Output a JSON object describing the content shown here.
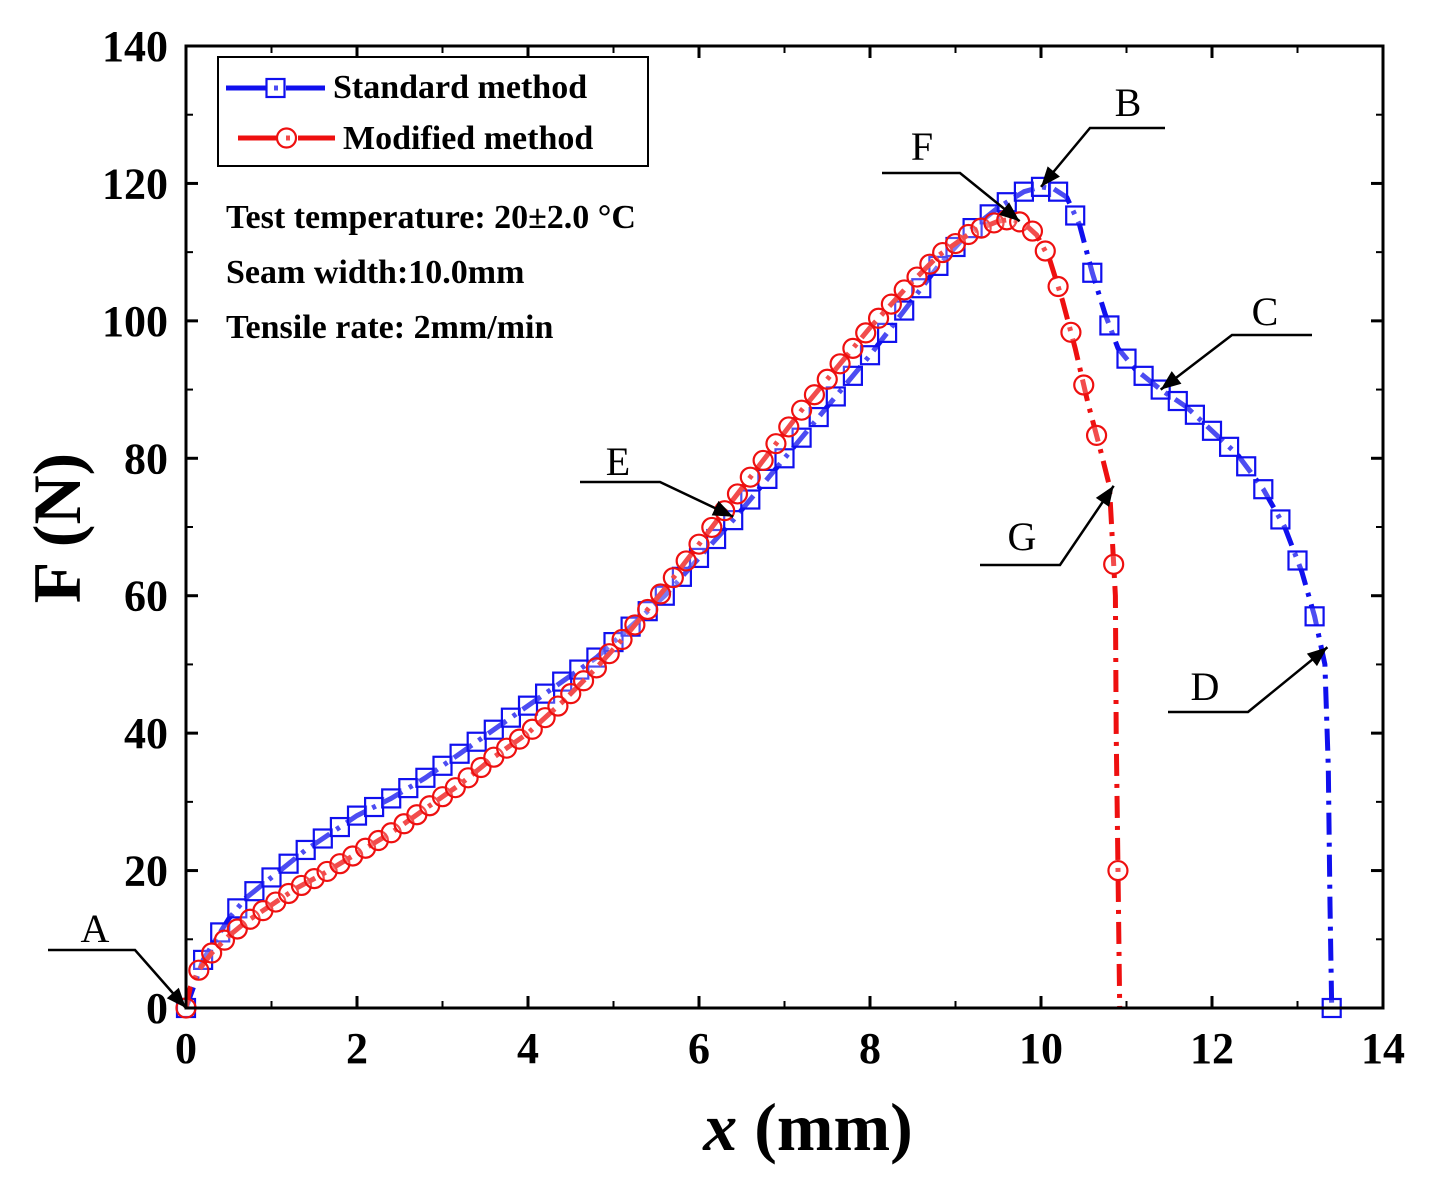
{
  "chart_data": {
    "type": "line",
    "title": "",
    "xlabel": "x (mm)",
    "xlabel_var": "x",
    "xlabel_unit": " (mm)",
    "ylabel": "F (N)",
    "xlim": [
      0,
      14
    ],
    "ylim": [
      0,
      140
    ],
    "xticks": [
      0,
      2,
      4,
      6,
      8,
      10,
      12,
      14
    ],
    "yticks": [
      0,
      20,
      40,
      60,
      80,
      100,
      120,
      140
    ],
    "grid": false,
    "legend_position": "top-left",
    "notes": [
      "Test temperature: 20±2.0 °C",
      "Seam width:10.0mm",
      "Tensile rate: 2mm/min"
    ],
    "series": [
      {
        "name": "Standard method",
        "color": "#1010ee",
        "marker": "square",
        "line_style": "dash-dot",
        "x": [
          0,
          0.1,
          0.2,
          0.35,
          0.5,
          0.7,
          0.9,
          1.1,
          1.4,
          1.7,
          2.0,
          2.4,
          2.8,
          3.2,
          3.6,
          4.0,
          4.4,
          4.8,
          5.2,
          5.6,
          6.0,
          6.4,
          6.8,
          7.2,
          7.6,
          8.0,
          8.4,
          8.8,
          9.2,
          9.5,
          9.8,
          10.0,
          10.15,
          10.3,
          10.45,
          10.6,
          10.75,
          10.9,
          11.1,
          11.4,
          11.7,
          12.0,
          12.3,
          12.6,
          12.85,
          13.05,
          13.2,
          13.32,
          13.36,
          13.38,
          13.4
        ],
        "y": [
          0,
          3.5,
          7,
          10,
          13,
          16,
          18,
          20,
          23,
          25.5,
          28,
          30.5,
          33.5,
          37,
          40.5,
          44,
          47.5,
          51,
          55.5,
          60,
          65.5,
          71,
          77,
          83,
          89,
          95,
          101.5,
          108,
          113.5,
          116.5,
          118.8,
          119.5,
          119.2,
          118,
          114,
          107,
          101,
          96,
          93,
          90,
          87.5,
          84,
          80.5,
          75.5,
          70,
          63.5,
          57,
          50,
          35,
          15,
          0
        ],
        "marker_x": [
          0,
          0.2,
          0.4,
          0.6,
          0.8,
          1.0,
          1.2,
          1.4,
          1.6,
          1.8,
          2.0,
          2.2,
          2.4,
          2.6,
          2.8,
          3.0,
          3.2,
          3.4,
          3.6,
          3.8,
          4.0,
          4.2,
          4.4,
          4.6,
          4.8,
          5.0,
          5.2,
          5.4,
          5.6,
          5.8,
          6.0,
          6.2,
          6.4,
          6.6,
          6.8,
          7.0,
          7.2,
          7.4,
          7.6,
          7.8,
          8.0,
          8.2,
          8.4,
          8.6,
          8.8,
          9.0,
          9.2,
          9.4,
          9.6,
          9.8,
          10.0,
          10.2,
          10.4,
          10.6,
          10.8,
          11.0,
          11.2,
          11.4,
          11.6,
          11.8,
          12.0,
          12.2,
          12.4,
          12.6,
          12.8,
          13.0,
          13.2,
          13.4
        ]
      },
      {
        "name": "Modified method",
        "color": "#ee1010",
        "marker": "circle",
        "line_style": "dash-dot",
        "x": [
          0,
          0.05,
          0.15,
          0.3,
          0.5,
          0.7,
          1.0,
          1.3,
          1.6,
          2.0,
          2.4,
          2.8,
          3.2,
          3.6,
          4.0,
          4.4,
          4.8,
          5.2,
          5.6,
          6.0,
          6.4,
          6.8,
          7.2,
          7.6,
          8.0,
          8.4,
          8.8,
          9.2,
          9.5,
          9.65,
          9.8,
          9.95,
          10.1,
          10.25,
          10.4,
          10.55,
          10.7,
          10.8,
          10.87,
          10.88,
          10.9,
          10.92
        ],
        "y": [
          0,
          3,
          5.5,
          8,
          10.5,
          12.5,
          15,
          17.5,
          19.5,
          22.5,
          25.5,
          29,
          32.5,
          36.5,
          40,
          44.5,
          49.5,
          55,
          61,
          67.5,
          74,
          80.5,
          87,
          93,
          99,
          104.5,
          109.5,
          113,
          114.5,
          114.8,
          114.2,
          112.5,
          109,
          103,
          96,
          88,
          81,
          76,
          60,
          40,
          20,
          0
        ],
        "marker_x": [
          0,
          0.15,
          0.3,
          0.45,
          0.6,
          0.75,
          0.9,
          1.05,
          1.2,
          1.35,
          1.5,
          1.65,
          1.8,
          1.95,
          2.1,
          2.25,
          2.4,
          2.55,
          2.7,
          2.85,
          3.0,
          3.15,
          3.3,
          3.45,
          3.6,
          3.75,
          3.9,
          4.05,
          4.2,
          4.35,
          4.5,
          4.65,
          4.8,
          4.95,
          5.1,
          5.25,
          5.4,
          5.55,
          5.7,
          5.85,
          6.0,
          6.15,
          6.3,
          6.45,
          6.6,
          6.75,
          6.9,
          7.05,
          7.2,
          7.35,
          7.5,
          7.65,
          7.8,
          7.95,
          8.1,
          8.25,
          8.4,
          8.55,
          8.7,
          8.85,
          9.0,
          9.15,
          9.3,
          9.45,
          9.6,
          9.75,
          9.9,
          10.05,
          10.2,
          10.35,
          10.5,
          10.65,
          10.85,
          10.9
        ]
      }
    ],
    "annotations": [
      {
        "label": "A",
        "x": 0.0,
        "y": 0.0
      },
      {
        "label": "B",
        "x": 10.0,
        "y": 119.5
      },
      {
        "label": "C",
        "x": 11.4,
        "y": 90.0
      },
      {
        "label": "D",
        "x": 13.35,
        "y": 52.5
      },
      {
        "label": "E",
        "x": 6.4,
        "y": 71.5
      },
      {
        "label": "F",
        "x": 9.75,
        "y": 114.5
      },
      {
        "label": "G",
        "x": 10.85,
        "y": 76.0
      }
    ]
  }
}
